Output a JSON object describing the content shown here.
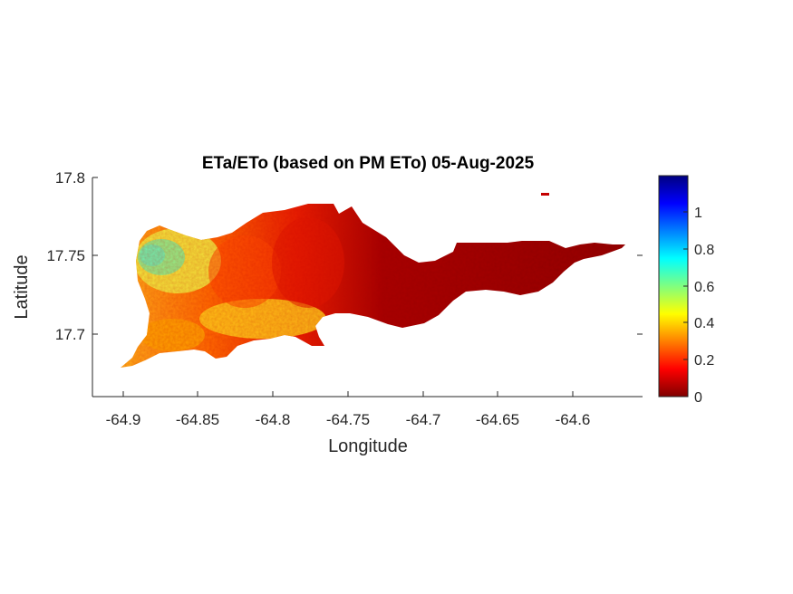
{
  "map": {
    "title": "ETa/ETo (based on PM ETo) 05-Aug-2025",
    "xlabel": "Longitude",
    "ylabel": "Latitude",
    "x_ticks": [
      "-64.9",
      "-64.85",
      "-64.8",
      "-64.75",
      "-64.7",
      "-64.65",
      "-64.6"
    ],
    "y_ticks": [
      "17.8",
      "17.75",
      "17.7"
    ],
    "xlim": [
      -64.92,
      -64.56
    ],
    "ylim": [
      17.66,
      17.8
    ],
    "colorbar": {
      "colormap": "jet",
      "range": [
        0,
        1.2
      ],
      "ticks": [
        "0",
        "0.2",
        "0.4",
        "0.6",
        "0.8",
        "1"
      ]
    }
  }
}
